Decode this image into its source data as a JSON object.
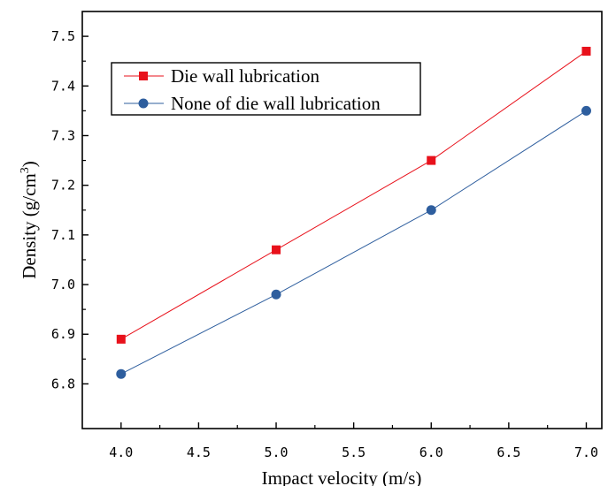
{
  "chart_data": {
    "type": "line",
    "title": "",
    "xlabel": "Impact velocity (m/s)",
    "ylabel": "Density (g/cm",
    "ylabel_sup": "3",
    "ylabel_tail": ")",
    "xlim": [
      3.75,
      7.1
    ],
    "ylim": [
      6.71,
      7.55
    ],
    "xticks": [
      4.0,
      4.5,
      5.0,
      5.5,
      6.0,
      6.5,
      7.0
    ],
    "xtick_labels": [
      "4.0",
      "4.5",
      "5.0",
      "5.5",
      "6.0",
      "6.5",
      "7.0"
    ],
    "yticks": [
      6.8,
      6.9,
      7.0,
      7.1,
      7.2,
      7.3,
      7.4,
      7.5
    ],
    "ytick_labels": [
      "6.8",
      "6.9",
      "7.0",
      "7.1",
      "7.2",
      "7.3",
      "7.4",
      "7.5"
    ],
    "grid": false,
    "legend_position": "top-left",
    "x": [
      4.0,
      5.0,
      6.0,
      7.0
    ],
    "series": [
      {
        "name": "Die wall lubrication",
        "values": [
          6.89,
          7.07,
          7.25,
          7.47
        ],
        "color": "#e8111b",
        "marker": "square"
      },
      {
        "name": "None of die wall lubrication",
        "values": [
          6.82,
          6.98,
          7.15,
          7.35
        ],
        "color": "#2e5e9e",
        "marker": "circle"
      }
    ]
  }
}
